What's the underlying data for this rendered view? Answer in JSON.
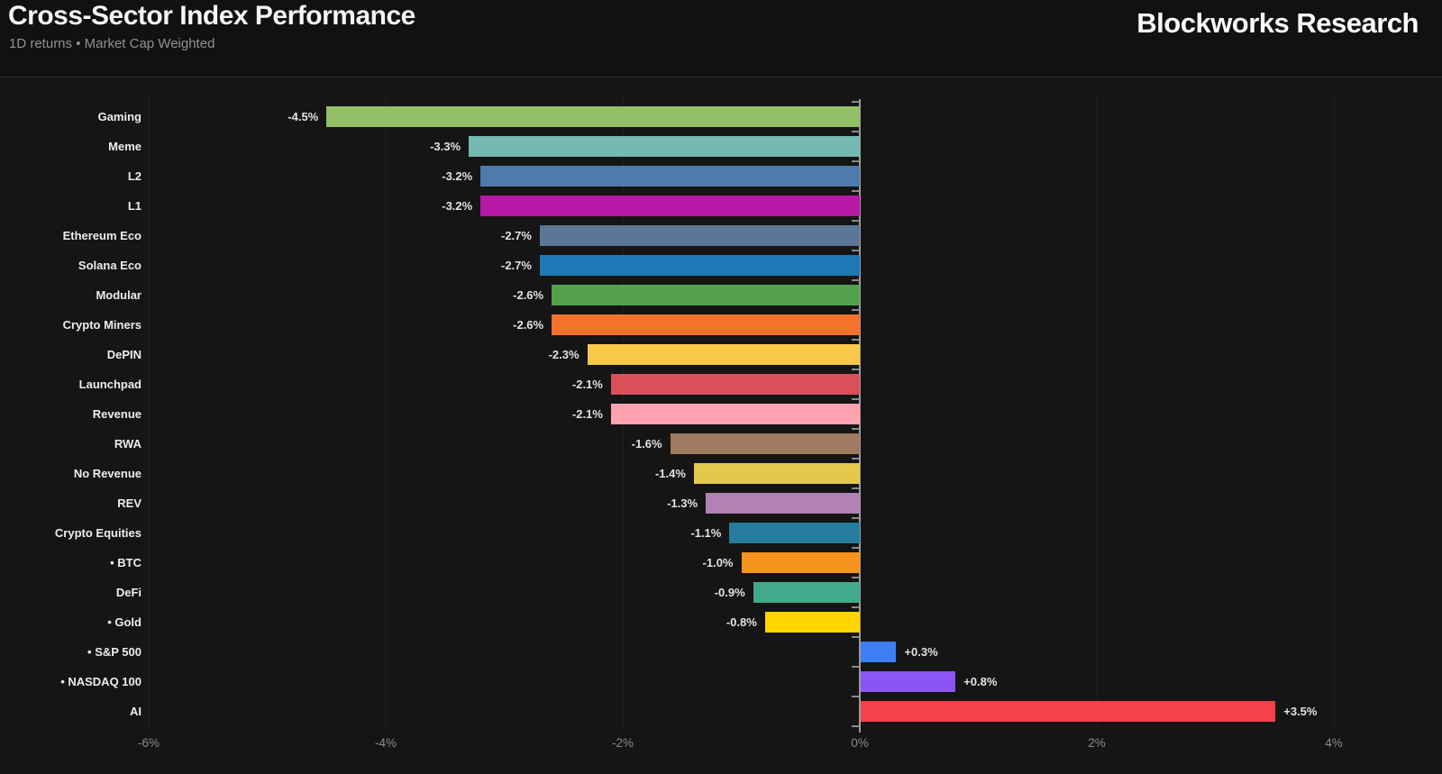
{
  "header": {
    "title": "Cross-Sector Index Performance",
    "subtitle": "1D returns • Market Cap Weighted",
    "brand": "Blockworks Research"
  },
  "colors": {
    "background": "#151515",
    "header_background": "#111111",
    "zero_axis": "#9b9b9b",
    "gridline": "#1f1f1f",
    "category_label": "#ededed",
    "value_label": "#e2e2e2",
    "axis_label": "#8a8a8a"
  },
  "chart_data": {
    "type": "bar",
    "orientation": "horizontal",
    "title": "Cross-Sector Index Performance",
    "subtitle": "1D returns • Market Cap Weighted",
    "xlabel": "",
    "ylabel": "",
    "xlim": [
      -6,
      4
    ],
    "x_tick_values": [
      -6,
      -4,
      -2,
      0,
      2,
      4
    ],
    "x_tick_labels": [
      "-6%",
      "-4%",
      "-2%",
      "0%",
      "2%",
      "4%"
    ],
    "grid": true,
    "legend": false,
    "series": [
      {
        "label": "Gaming",
        "value": -4.5,
        "display": "-4.5%",
        "color": "#93bf67",
        "benchmark": false
      },
      {
        "label": "Meme",
        "value": -3.3,
        "display": "-3.3%",
        "color": "#76b8b2",
        "benchmark": false
      },
      {
        "label": "L2",
        "value": -3.2,
        "display": "-3.2%",
        "color": "#4e7bac",
        "benchmark": false
      },
      {
        "label": "L1",
        "value": -3.2,
        "display": "-3.2%",
        "color": "#b619a5",
        "benchmark": false
      },
      {
        "label": "Ethereum Eco",
        "value": -2.7,
        "display": "-2.7%",
        "color": "#5b7795",
        "benchmark": false
      },
      {
        "label": "Solana Eco",
        "value": -2.7,
        "display": "-2.7%",
        "color": "#1e78b5",
        "benchmark": false
      },
      {
        "label": "Modular",
        "value": -2.6,
        "display": "-2.6%",
        "color": "#54a14d",
        "benchmark": false
      },
      {
        "label": "Crypto Miners",
        "value": -2.6,
        "display": "-2.6%",
        "color": "#f3722c",
        "benchmark": false
      },
      {
        "label": "DePIN",
        "value": -2.3,
        "display": "-2.3%",
        "color": "#f8c84b",
        "benchmark": false
      },
      {
        "label": "Launchpad",
        "value": -2.1,
        "display": "-2.1%",
        "color": "#d8515a",
        "benchmark": false
      },
      {
        "label": "Revenue",
        "value": -2.1,
        "display": "-2.1%",
        "color": "#ffa2b0",
        "benchmark": false
      },
      {
        "label": "RWA",
        "value": -1.6,
        "display": "-1.6%",
        "color": "#9d7a60",
        "benchmark": false
      },
      {
        "label": "No Revenue",
        "value": -1.4,
        "display": "-1.4%",
        "color": "#e3c84d",
        "benchmark": false
      },
      {
        "label": "REV",
        "value": -1.3,
        "display": "-1.3%",
        "color": "#b381b3",
        "benchmark": false
      },
      {
        "label": "Crypto Equities",
        "value": -1.1,
        "display": "-1.1%",
        "color": "#277b9e",
        "benchmark": false
      },
      {
        "label": "BTC",
        "value": -1.0,
        "display": "-1.0%",
        "color": "#f7941e",
        "benchmark": true
      },
      {
        "label": "DeFi",
        "value": -0.9,
        "display": "-0.9%",
        "color": "#41aa8c",
        "benchmark": false
      },
      {
        "label": "Gold",
        "value": -0.8,
        "display": "-0.8%",
        "color": "#ffd500",
        "benchmark": true
      },
      {
        "label": "S&P 500",
        "value": 0.3,
        "display": "+0.3%",
        "color": "#3d7ef5",
        "benchmark": true
      },
      {
        "label": "NASDAQ 100",
        "value": 0.8,
        "display": "+0.8%",
        "color": "#8a55f2",
        "benchmark": true
      },
      {
        "label": "AI",
        "value": 3.5,
        "display": "+3.5%",
        "color": "#f6404b",
        "benchmark": false
      }
    ]
  },
  "bullet": "•"
}
